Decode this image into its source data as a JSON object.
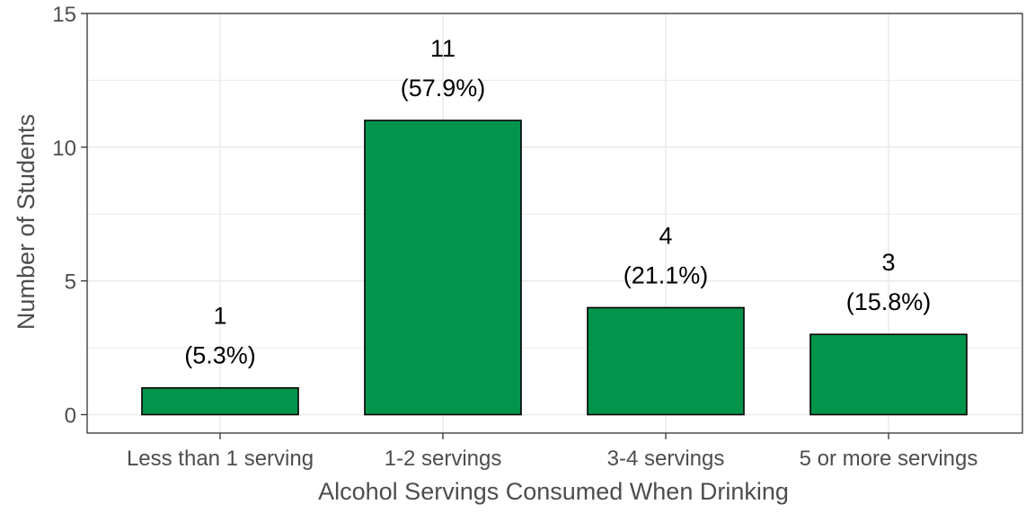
{
  "chart_data": {
    "type": "bar",
    "title": "",
    "xlabel": "Alcohol Servings Consumed When Drinking",
    "ylabel": "Number of Students",
    "categories": [
      "Less than 1 serving",
      "1-2 servings",
      "3-4 servings",
      "5 or more servings"
    ],
    "values": [
      1,
      11,
      4,
      3
    ],
    "data_labels": [
      {
        "count": "1",
        "percent": "(5.3%)"
      },
      {
        "count": "11",
        "percent": "(57.9%)"
      },
      {
        "count": "4",
        "percent": "(21.1%)"
      },
      {
        "count": "3",
        "percent": "(15.8%)"
      }
    ],
    "ylim": [
      0,
      15
    ],
    "yticks": [
      0,
      5,
      10,
      15
    ],
    "grid": true,
    "legend": "none",
    "colors": {
      "bar_fill": "#03944c",
      "bar_stroke": "#000000",
      "grid": "#ebebeb",
      "panel_border": "#333333",
      "axis_text": "#4d4d4d",
      "label_text": "#000000"
    }
  }
}
